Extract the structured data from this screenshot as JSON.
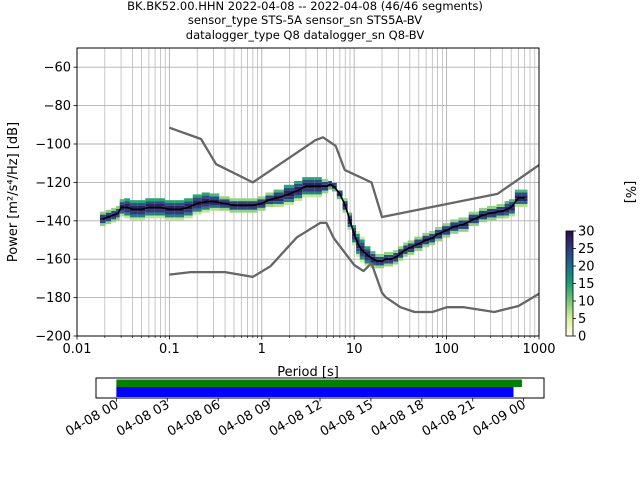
{
  "title": {
    "line1": "BK.BK52.00.HHN   2022-04-08 -- 2022-04-08  (46/46 segments)",
    "line2": "sensor_type STS-5A sensor_sn STS5A-BV",
    "line3": "datalogger_type Q8 datalogger_sn Q8-BV"
  },
  "colors": {
    "median": "#000000",
    "noise_models": "#666666",
    "grid": "#b0b0b0",
    "bar_data": "#008000",
    "bar_coverage": "#0000ff",
    "colormap": [
      "#ffffe5",
      "#d9f0a3",
      "#78c679",
      "#1d9e74",
      "#1d6e8c",
      "#2d3a7a",
      "#2c0e48"
    ]
  },
  "chart_data": [
    {
      "type": "heatmap",
      "xlabel": "Period [s]",
      "ylabel": "Power [m²/s⁴/Hz] [dB]",
      "x_scale": "log",
      "xlim": [
        0.01,
        1000
      ],
      "ylim": [
        -200,
        -50
      ],
      "x_ticks": [
        {
          "value": 0.01,
          "label": "0.01"
        },
        {
          "value": 0.1,
          "label": "0.1"
        },
        {
          "value": 1,
          "label": "1"
        },
        {
          "value": 10,
          "label": "10"
        },
        {
          "value": 100,
          "label": "100"
        },
        {
          "value": 1000,
          "label": "1000"
        }
      ],
      "y_ticks": [
        {
          "value": -60,
          "label": "−60"
        },
        {
          "value": -80,
          "label": "−80"
        },
        {
          "value": -100,
          "label": "−100"
        },
        {
          "value": -120,
          "label": "−120"
        },
        {
          "value": -140,
          "label": "−140"
        },
        {
          "value": -160,
          "label": "−160"
        },
        {
          "value": -180,
          "label": "−180"
        },
        {
          "value": -200,
          "label": "−200"
        }
      ],
      "grid": true,
      "median": {
        "x": [
          0.019,
          0.022,
          0.025,
          0.028,
          0.03,
          0.035,
          0.04,
          0.05,
          0.06,
          0.08,
          0.1,
          0.13,
          0.16,
          0.2,
          0.25,
          0.3,
          0.4,
          0.5,
          0.6,
          0.8,
          1.0,
          1.2,
          1.5,
          2.0,
          2.5,
          3.0,
          3.5,
          4.0,
          5.0,
          5.5,
          6.0,
          7.0,
          8.0,
          9.0,
          10,
          11,
          12,
          14,
          16,
          18,
          20,
          22,
          25,
          28,
          32,
          36,
          40,
          50,
          60,
          70,
          80,
          100,
          120,
          150,
          200,
          250,
          300,
          400,
          450,
          500,
          600,
          700
        ],
        "y": [
          -139,
          -138,
          -137,
          -136,
          -133,
          -133,
          -134,
          -134,
          -133,
          -133,
          -134,
          -134,
          -133,
          -131,
          -130,
          -130,
          -131,
          -132,
          -132,
          -132,
          -131,
          -129,
          -128,
          -126,
          -124,
          -122,
          -122,
          -122,
          -122,
          -121,
          -122,
          -126,
          -132,
          -140,
          -147,
          -152,
          -155,
          -158,
          -160,
          -161,
          -161,
          -160,
          -160,
          -159,
          -157,
          -155,
          -154,
          -152,
          -150,
          -149,
          -147,
          -145,
          -143,
          -142,
          -139,
          -137,
          -136,
          -135,
          -134,
          -133,
          -128,
          -128
        ]
      },
      "heatmap_cells": {
        "x": [
          0.019,
          0.022,
          0.025,
          0.028,
          0.03,
          0.035,
          0.04,
          0.05,
          0.06,
          0.08,
          0.1,
          0.13,
          0.16,
          0.2,
          0.25,
          0.3,
          0.4,
          0.5,
          0.6,
          0.8,
          1.0,
          1.2,
          1.5,
          2.0,
          2.5,
          3.0,
          3.5,
          4.0,
          5.0,
          5.5,
          6.0,
          7.0,
          8.0,
          9.0,
          10,
          11,
          12,
          14,
          16,
          18,
          20,
          22,
          25,
          28,
          32,
          36,
          40,
          50,
          60,
          70,
          80,
          100,
          120,
          150,
          200,
          250,
          300,
          400,
          450,
          500,
          600,
          700
        ],
        "center": [
          -139,
          -138,
          -137,
          -136,
          -133,
          -133,
          -134,
          -134,
          -133,
          -133,
          -134,
          -134,
          -133,
          -131,
          -130,
          -130,
          -131,
          -132,
          -132,
          -132,
          -131,
          -129,
          -128,
          -126,
          -124,
          -122,
          -122,
          -122,
          -122,
          -121,
          -122,
          -126,
          -132,
          -140,
          -147,
          -152,
          -155,
          -158,
          -160,
          -161,
          -161,
          -160,
          -160,
          -159,
          -157,
          -155,
          -154,
          -152,
          -150,
          -149,
          -147,
          -145,
          -143,
          -142,
          -139,
          -137,
          -136,
          -135,
          -134,
          -133,
          -128,
          -128
        ],
        "spread": [
          3,
          3,
          3,
          3,
          4,
          5,
          5,
          5,
          5,
          5,
          5,
          5,
          5,
          5,
          5,
          4,
          3,
          3,
          3,
          3,
          3,
          3,
          4,
          5,
          5,
          5,
          5,
          5,
          3,
          2,
          2,
          2,
          3,
          4,
          5,
          6,
          6,
          5,
          4,
          3,
          3,
          3,
          3,
          3,
          3,
          3,
          3,
          3,
          3,
          3,
          3,
          3,
          3,
          3,
          3,
          3,
          3,
          3,
          4,
          4,
          4,
          4
        ]
      },
      "noise_model_high": {
        "x": [
          0.1,
          0.22,
          0.32,
          0.8,
          3.8,
          4.6,
          6.3,
          7.9,
          15.4,
          20,
          354.8,
          1000
        ],
        "y": [
          -91.5,
          -97.4,
          -110.5,
          -120,
          -98,
          -96.5,
          -101,
          -113.5,
          -120,
          -138,
          -126,
          -111
        ]
      },
      "noise_model_low": {
        "x": [
          0.1,
          0.17,
          0.4,
          0.8,
          1.24,
          2.4,
          4.3,
          5.0,
          6.0,
          10,
          12.6,
          15.4,
          20,
          21.9,
          31.6,
          45,
          70,
          101,
          154,
          328,
          600,
          1000
        ],
        "y": [
          -168,
          -166.7,
          -166.7,
          -169.2,
          -163.7,
          -148.6,
          -141.1,
          -141.1,
          -149,
          -163,
          -166.2,
          -162.1,
          -177.5,
          -179.8,
          -185,
          -187.5,
          -187.5,
          -185,
          -185,
          -187.5,
          -184.4,
          -178
        ]
      }
    },
    {
      "type": "heatmap",
      "colorbar_label": "[%]",
      "vmin": 0,
      "vmax": 30,
      "ticks": [
        {
          "value": 0,
          "label": "0"
        },
        {
          "value": 5,
          "label": "5"
        },
        {
          "value": 10,
          "label": "10"
        },
        {
          "value": 15,
          "label": "15"
        },
        {
          "value": 20,
          "label": "20"
        },
        {
          "value": 25,
          "label": "25"
        },
        {
          "value": 30,
          "label": "30"
        }
      ]
    },
    {
      "type": "bar",
      "x_ticks": [
        {
          "hour": 0,
          "label": "04-08 00"
        },
        {
          "hour": 3,
          "label": "04-08 03"
        },
        {
          "hour": 6,
          "label": "04-08 06"
        },
        {
          "hour": 9,
          "label": "04-08 09"
        },
        {
          "hour": 12,
          "label": "04-08 12"
        },
        {
          "hour": 15,
          "label": "04-08 15"
        },
        {
          "hour": 18,
          "label": "04-08 18"
        },
        {
          "hour": 21,
          "label": "04-08 21"
        },
        {
          "hour": 24,
          "label": "04-09 00"
        }
      ],
      "xlim_hours": [
        -1.2,
        25.2
      ],
      "series": [
        {
          "start_hour": 0,
          "end_hour": 23.9
        },
        {
          "start_hour": 0,
          "end_hour": 23.4
        }
      ]
    }
  ]
}
